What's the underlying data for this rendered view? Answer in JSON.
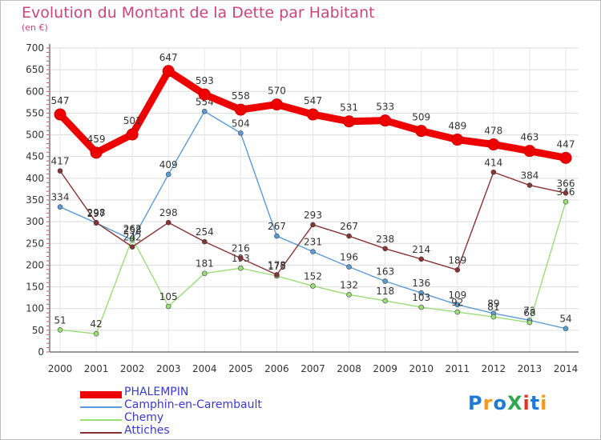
{
  "header": {
    "title": "Evolution du Montant de la Dette par Habitant",
    "unit": "(en €)"
  },
  "logo": {
    "text": "ProXiti",
    "colors": [
      "#1f7bd6",
      "#f29a1c",
      "#2fa84f",
      "#e2332b",
      "#7a7a7a"
    ]
  },
  "chart_data": {
    "type": "line",
    "x": [
      2000,
      2001,
      2002,
      2003,
      2004,
      2005,
      2006,
      2007,
      2008,
      2009,
      2010,
      2011,
      2012,
      2013,
      2014
    ],
    "ylim": [
      0,
      700
    ],
    "yticks": [
      0,
      50,
      100,
      150,
      200,
      250,
      300,
      350,
      400,
      450,
      500,
      550,
      600,
      650,
      700
    ],
    "grid": true,
    "legend_position": "bottom-left",
    "series": [
      {
        "name": "PHALEMPIN",
        "color": "#ee0000",
        "values": [
          547,
          459,
          501,
          647,
          593,
          558,
          570,
          547,
          531,
          533,
          509,
          489,
          478,
          463,
          447
        ]
      },
      {
        "name": "Camphin-en-Carembault",
        "color": "#5b9bd5",
        "values": [
          334,
          297,
          258,
          409,
          554,
          504,
          267,
          231,
          196,
          163,
          136,
          109,
          89,
          73,
          54
        ]
      },
      {
        "name": "Chemy",
        "color": "#99dd77",
        "values": [
          51,
          42,
          262,
          105,
          181,
          193,
          175,
          152,
          132,
          118,
          103,
          92,
          81,
          68,
          346
        ]
      },
      {
        "name": "Attiches",
        "color": "#883333",
        "values": [
          417,
          298,
          242,
          298,
          254,
          216,
          178,
          293,
          267,
          238,
          214,
          189,
          414,
          384,
          366
        ]
      }
    ]
  }
}
